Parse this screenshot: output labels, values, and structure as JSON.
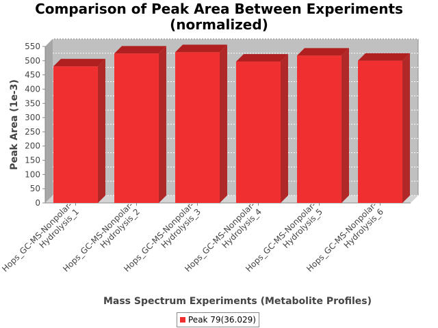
{
  "chart_data": {
    "type": "bar",
    "title_lines": [
      "Comparison of Peak Area Between Experiments",
      "(normalized)"
    ],
    "xlabel": "Mass Spectrum Experiments (Metabolite Profiles)",
    "ylabel": "Peak Area (1e-3)",
    "ylim": [
      0,
      550
    ],
    "yticks": [
      0,
      50,
      100,
      150,
      200,
      250,
      300,
      350,
      400,
      450,
      500,
      550
    ],
    "grid": true,
    "legend_position": "bottom",
    "categories": [
      [
        "Hops_GC-MS-Nonpolar-",
        "Hydrolysis_1"
      ],
      [
        "Hops_GC-MS-Nonpolar-",
        "Hydrolysis_2"
      ],
      [
        "Hops_GC-MS-Nonpolar-",
        "Hydrolysis_3"
      ],
      [
        "Hops_GC-MS-Nonpolar-",
        "Hydrolysis_4"
      ],
      [
        "Hops_GC-MS-Nonpolar-",
        "Hydrolysis_5"
      ],
      [
        "Hops_GC-MS-Nonpolar-",
        "Hydrolysis_6"
      ]
    ],
    "series": [
      {
        "name": "Peak 79(36.029)",
        "color": "#f03030",
        "values": [
          480,
          525,
          530,
          497,
          518,
          500
        ]
      }
    ]
  }
}
